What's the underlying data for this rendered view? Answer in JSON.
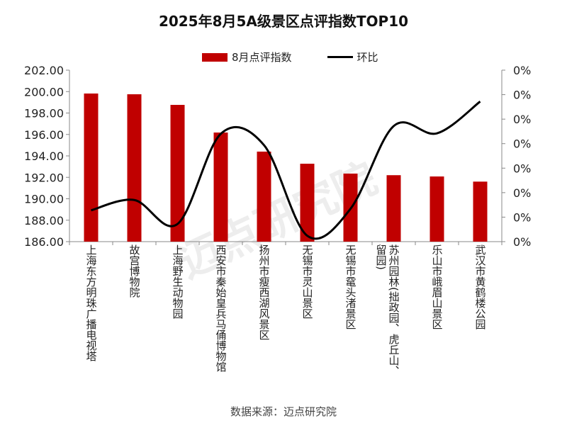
{
  "chart_data": {
    "type": "bar+line",
    "title": "2025年8月5A级景区点评指数TOP10",
    "categories": [
      "上海东方明珠广播电视塔",
      "故宫博物院",
      "上海野生动物园",
      "西安市秦始皇兵马俑博物馆",
      "扬州市瘦西湖风景区",
      "无锡市灵山景区",
      "无锡市鼋头渚景区",
      "苏州园林(拙政园、虎丘山、留园)",
      "乐山市峨眉山景区",
      "武汉市黄鹤楼公园"
    ],
    "series": [
      {
        "name": "8月点评指数",
        "type": "bar",
        "axis": "left",
        "color": "#C00000",
        "values": [
          199.82,
          199.75,
          198.76,
          196.18,
          194.4,
          193.27,
          192.35,
          192.2,
          192.08,
          191.6
        ]
      },
      {
        "name": "环比",
        "type": "line",
        "axis": "right",
        "color": "#000000",
        "values": [
          0.064,
          0.085,
          0.036,
          0.22,
          0.197,
          0.012,
          0.067,
          0.236,
          0.221,
          0.286
        ]
      }
    ],
    "ylim": [
      186,
      202
    ],
    "yticks": [
      "186.00",
      "188.00",
      "190.00",
      "192.00",
      "194.00",
      "196.00",
      "198.00",
      "200.00",
      "202.00"
    ],
    "y2lim": [
      0,
      0.35
    ],
    "y2ticks": [
      "0%",
      "0%",
      "0%",
      "0%",
      "0%",
      "0%",
      "0%",
      "0%"
    ],
    "legend": "top",
    "grid": false
  },
  "source": "数据来源：迈点研究院",
  "watermark": "迈点研究院"
}
